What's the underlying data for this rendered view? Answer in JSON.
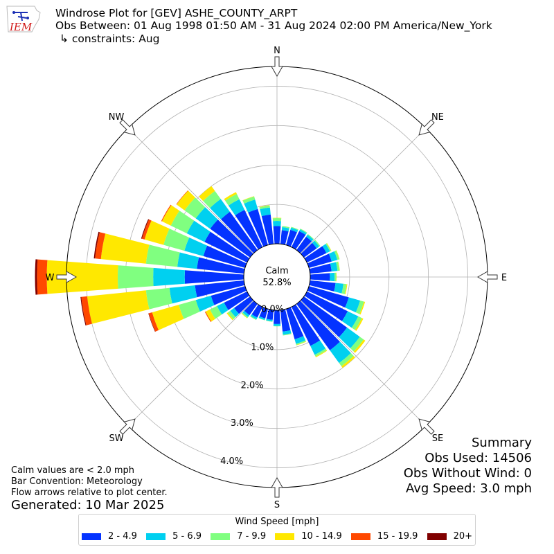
{
  "header": {
    "logo_text": "IEM",
    "title": "Windrose Plot for [GEV] ASHE_COUNTY_ARPT",
    "period": "Obs Between: 01 Aug 1998 01:50 AM - 31 Aug 2024 02:00 PM America/New_York",
    "constraints": "↳ constraints: Aug"
  },
  "summary": {
    "title": "Summary",
    "obs_used": "Obs Used: 14506",
    "obs_without_wind": "Obs Without Wind: 0",
    "avg_speed": "Avg Speed: 3.0 mph"
  },
  "notes": {
    "calm_note": "Calm values are < 2.0 mph",
    "bar_convention": "Bar Convention: Meteorology",
    "flow_arrows": "Flow arrows relative to plot center.",
    "generated": "Generated: 10 Mar 2025"
  },
  "chart_data": {
    "type": "windrose",
    "calm_label": "Calm",
    "calm_value": "52.8%",
    "radial_ticks": [
      "0.0%",
      "1.0%",
      "2.0%",
      "3.0%",
      "4.0%"
    ],
    "radial_values": [
      0,
      1,
      2,
      3,
      4
    ],
    "radial_max": 4.5,
    "directions": [
      "N",
      "NE",
      "E",
      "SE",
      "S",
      "SW",
      "W",
      "NW"
    ],
    "legend_title": "Wind Speed [mph]",
    "bins": [
      {
        "label": "2 - 4.9",
        "color": "#0433ff"
      },
      {
        "label": "5 - 6.9",
        "color": "#00d0f0"
      },
      {
        "label": "7 - 9.9",
        "color": "#80ff80"
      },
      {
        "label": "10 - 14.9",
        "color": "#ffe800"
      },
      {
        "label": "15 - 19.9",
        "color": "#ff4800"
      },
      {
        "label": "20+",
        "color": "#800000"
      }
    ],
    "sectors": [
      {
        "dir": 0,
        "values": [
          0.45,
          0.13,
          0.07,
          0.01,
          0,
          0
        ]
      },
      {
        "dir": 10,
        "values": [
          0.35,
          0.08,
          0.03,
          0,
          0,
          0
        ]
      },
      {
        "dir": 20,
        "values": [
          0.4,
          0.06,
          0.02,
          0,
          0,
          0
        ]
      },
      {
        "dir": 30,
        "values": [
          0.45,
          0.05,
          0.02,
          0,
          0,
          0
        ]
      },
      {
        "dir": 40,
        "values": [
          0.42,
          0.06,
          0.02,
          0,
          0,
          0
        ]
      },
      {
        "dir": 50,
        "values": [
          0.4,
          0.08,
          0.03,
          0,
          0,
          0
        ]
      },
      {
        "dir": 60,
        "values": [
          0.55,
          0.1,
          0.03,
          0.01,
          0,
          0
        ]
      },
      {
        "dir": 70,
        "values": [
          0.6,
          0.15,
          0.05,
          0.01,
          0,
          0
        ]
      },
      {
        "dir": 80,
        "values": [
          0.55,
          0.15,
          0.05,
          0.01,
          0,
          0
        ]
      },
      {
        "dir": 90,
        "values": [
          0.5,
          0.12,
          0.04,
          0.01,
          0,
          0
        ]
      },
      {
        "dir": 100,
        "values": [
          0.65,
          0.2,
          0.08,
          0.02,
          0,
          0
        ]
      },
      {
        "dir": 110,
        "values": [
          1.05,
          0.3,
          0.1,
          0.03,
          0,
          0
        ]
      },
      {
        "dir": 120,
        "values": [
          1.15,
          0.3,
          0.1,
          0.04,
          0,
          0
        ]
      },
      {
        "dir": 130,
        "values": [
          1.35,
          0.4,
          0.12,
          0.05,
          0,
          0
        ]
      },
      {
        "dir": 140,
        "values": [
          1.45,
          0.4,
          0.1,
          0.05,
          0,
          0
        ]
      },
      {
        "dir": 150,
        "values": [
          1.1,
          0.25,
          0.05,
          0.02,
          0,
          0
        ]
      },
      {
        "dir": 160,
        "values": [
          0.8,
          0.12,
          0.03,
          0.01,
          0,
          0
        ]
      },
      {
        "dir": 170,
        "values": [
          0.55,
          0.08,
          0.02,
          0,
          0,
          0
        ]
      },
      {
        "dir": 180,
        "values": [
          0.35,
          0.05,
          0.01,
          0,
          0,
          0
        ]
      },
      {
        "dir": 190,
        "values": [
          0.25,
          0.04,
          0.01,
          0,
          0,
          0
        ]
      },
      {
        "dir": 200,
        "values": [
          0.25,
          0.04,
          0.01,
          0,
          0,
          0
        ]
      },
      {
        "dir": 210,
        "values": [
          0.3,
          0.05,
          0.02,
          0,
          0,
          0
        ]
      },
      {
        "dir": 220,
        "values": [
          0.35,
          0.06,
          0.03,
          0.01,
          0,
          0
        ]
      },
      {
        "dir": 230,
        "values": [
          0.5,
          0.12,
          0.08,
          0.03,
          0,
          0
        ]
      },
      {
        "dir": 240,
        "values": [
          0.65,
          0.2,
          0.2,
          0.12,
          0.02,
          0
        ]
      },
      {
        "dir": 250,
        "values": [
          0.9,
          0.4,
          0.45,
          0.7,
          0.09,
          0.01
        ]
      },
      {
        "dir": 260,
        "values": [
          1.25,
          0.65,
          0.6,
          1.5,
          0.15,
          0.02
        ]
      },
      {
        "dir": 270,
        "values": [
          1.5,
          0.8,
          0.9,
          1.8,
          0.25,
          0.05
        ]
      },
      {
        "dir": 280,
        "values": [
          1.2,
          0.5,
          0.8,
          1.15,
          0.15,
          0.03
        ]
      },
      {
        "dir": 290,
        "values": [
          1.1,
          0.5,
          0.55,
          0.5,
          0.07,
          0.02
        ]
      },
      {
        "dir": 300,
        "values": [
          1.2,
          0.5,
          0.45,
          0.25,
          0.02,
          0
        ]
      },
      {
        "dir": 310,
        "values": [
          1.25,
          0.45,
          0.35,
          0.25,
          0.01,
          0
        ]
      },
      {
        "dir": 320,
        "values": [
          1.2,
          0.4,
          0.25,
          0.15,
          0,
          0
        ]
      },
      {
        "dir": 330,
        "values": [
          1.05,
          0.3,
          0.15,
          0.05,
          0,
          0
        ]
      },
      {
        "dir": 340,
        "values": [
          0.95,
          0.25,
          0.08,
          0.01,
          0,
          0
        ]
      },
      {
        "dir": 350,
        "values": [
          0.75,
          0.18,
          0.05,
          0.01,
          0,
          0
        ]
      }
    ]
  }
}
